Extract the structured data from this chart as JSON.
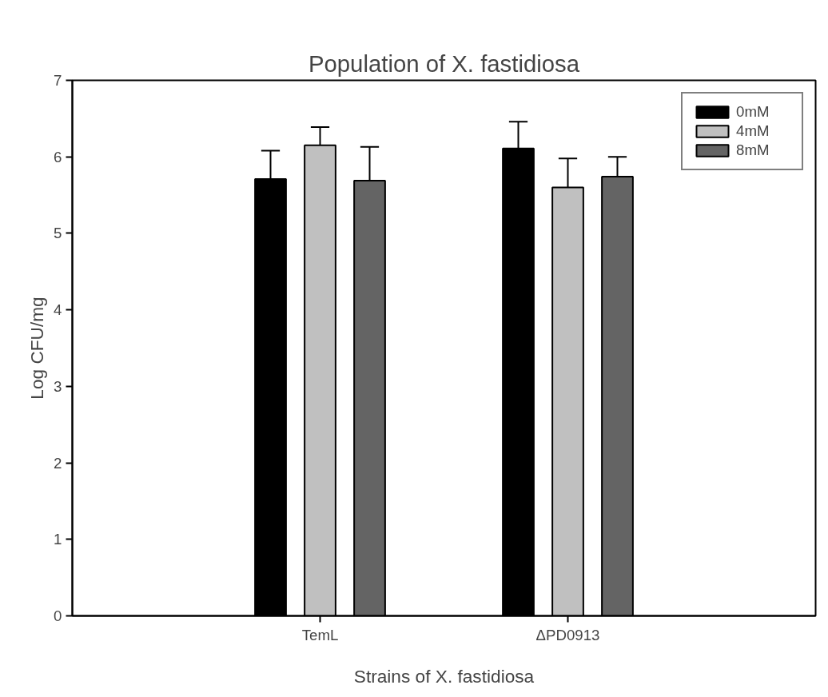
{
  "chart_data": {
    "type": "bar",
    "title": "Population of X. fastidiosa",
    "xlabel": "Strains of X. fastidiosa",
    "ylabel": "Log CFU/mg",
    "categories": [
      "TemL",
      "ΔPD0913"
    ],
    "series": [
      {
        "name": "0mM",
        "color": "#000000",
        "values": [
          5.71,
          6.11
        ],
        "errors": [
          [
            5.71,
            6.08
          ],
          [
            6.11,
            6.46
          ]
        ]
      },
      {
        "name": "4mM",
        "color": "#c0c0c0",
        "values": [
          6.15,
          5.6
        ],
        "errors": [
          [
            6.15,
            6.39
          ],
          [
            5.6,
            5.98
          ]
        ]
      },
      {
        "name": "8mM",
        "color": "#646464",
        "values": [
          5.69,
          5.74
        ],
        "errors": [
          [
            5.69,
            6.13
          ],
          [
            5.74,
            6.0
          ]
        ]
      }
    ],
    "ylim": [
      0,
      7
    ],
    "yticks": [
      0,
      1,
      2,
      3,
      4,
      5,
      6,
      7
    ],
    "grid": false,
    "legend": "top right"
  }
}
